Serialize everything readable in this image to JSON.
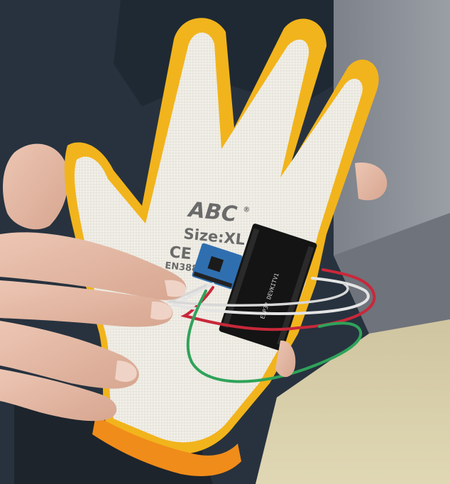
{
  "glove": {
    "brand": "ABC",
    "brand_mark": "®",
    "size": "Size:XL",
    "ce_mark": "CE",
    "standard": "EN388"
  },
  "board": {
    "label": "ESP32 DEVKITV1"
  },
  "colors": {
    "glove_palm": "#f1efe8",
    "glove_coating": "#f2b41c",
    "cuff": "#f08c1a",
    "jacket": "#27323e",
    "wall": "#8a8e95",
    "floor": "#d9cfa8",
    "skin": "#e3b9a6",
    "wire_red": "#c8283a",
    "wire_white": "#e4e4e4",
    "wire_green": "#2fa35a",
    "sensor_board": "#2f6fb0",
    "mcu_board": "#141414"
  }
}
